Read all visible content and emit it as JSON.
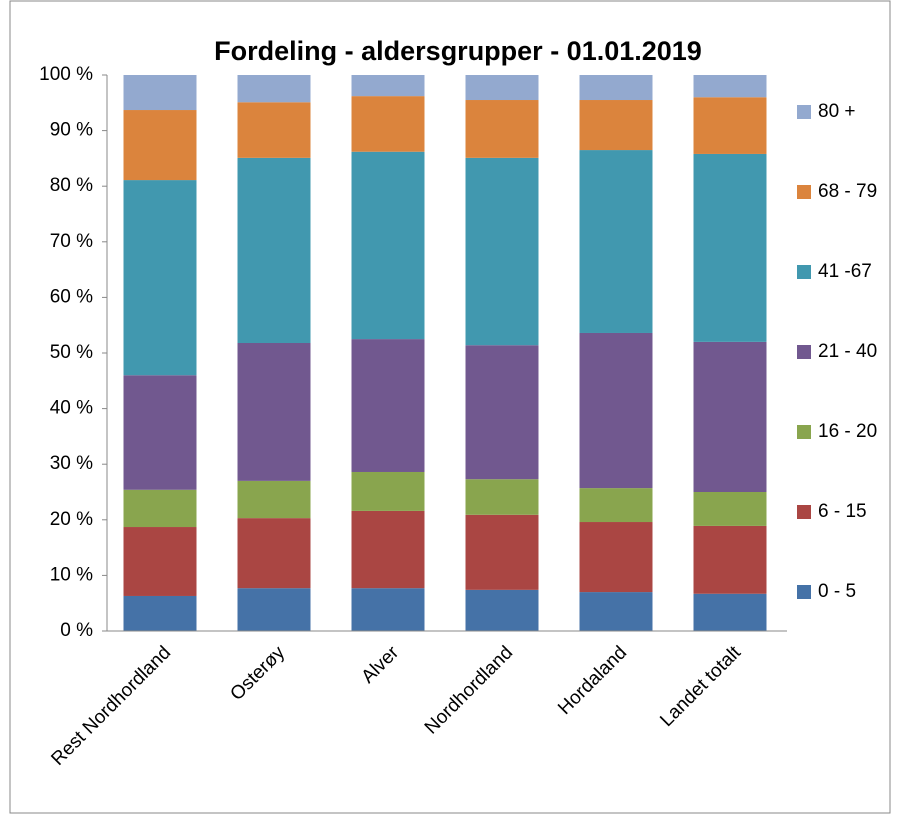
{
  "chart_data": {
    "type": "stacked_bar",
    "title": "Fordeling - aldersgrupper - 01.01.2019",
    "categories": [
      "Rest Nordhordland",
      "Osterøy",
      "Alver",
      "Nordhordland",
      "Hordaland",
      "Landet totalt"
    ],
    "series": [
      {
        "name": "0 - 5",
        "color": "#4572a7",
        "values": [
          6.3,
          7.7,
          7.7,
          7.4,
          7.0,
          6.7
        ]
      },
      {
        "name": "6 - 15",
        "color": "#aa4643",
        "values": [
          12.4,
          12.6,
          13.9,
          13.5,
          12.6,
          12.2
        ]
      },
      {
        "name": "16 - 20",
        "color": "#89a54e",
        "values": [
          6.7,
          6.7,
          7.0,
          6.4,
          6.1,
          6.1
        ]
      },
      {
        "name": "21 - 40",
        "color": "#71588f",
        "values": [
          20.6,
          24.8,
          23.9,
          24.1,
          27.9,
          27.0
        ]
      },
      {
        "name": "41 -67",
        "color": "#4198af",
        "values": [
          35.1,
          33.3,
          33.7,
          33.7,
          32.9,
          33.8
        ]
      },
      {
        "name": "68 - 79",
        "color": "#db843d",
        "values": [
          12.6,
          10.0,
          10.0,
          10.4,
          9.0,
          10.2
        ]
      },
      {
        "name": "80 +",
        "color": "#93a9cf",
        "values": [
          6.3,
          4.9,
          3.8,
          4.5,
          4.5,
          4.0
        ]
      }
    ],
    "ylim": [
      0,
      100
    ],
    "yticks": [
      {
        "value": 0,
        "label": "0 %"
      },
      {
        "value": 10,
        "label": "10 %"
      },
      {
        "value": 20,
        "label": "20 %"
      },
      {
        "value": 30,
        "label": "30 %"
      },
      {
        "value": 40,
        "label": "40 %"
      },
      {
        "value": 50,
        "label": "50 %"
      },
      {
        "value": 60,
        "label": "60 %"
      },
      {
        "value": 70,
        "label": "70 %"
      },
      {
        "value": 80,
        "label": "80 %"
      },
      {
        "value": 90,
        "label": "90 %"
      },
      {
        "value": 100,
        "label": "100 %"
      }
    ],
    "legend": "right"
  }
}
